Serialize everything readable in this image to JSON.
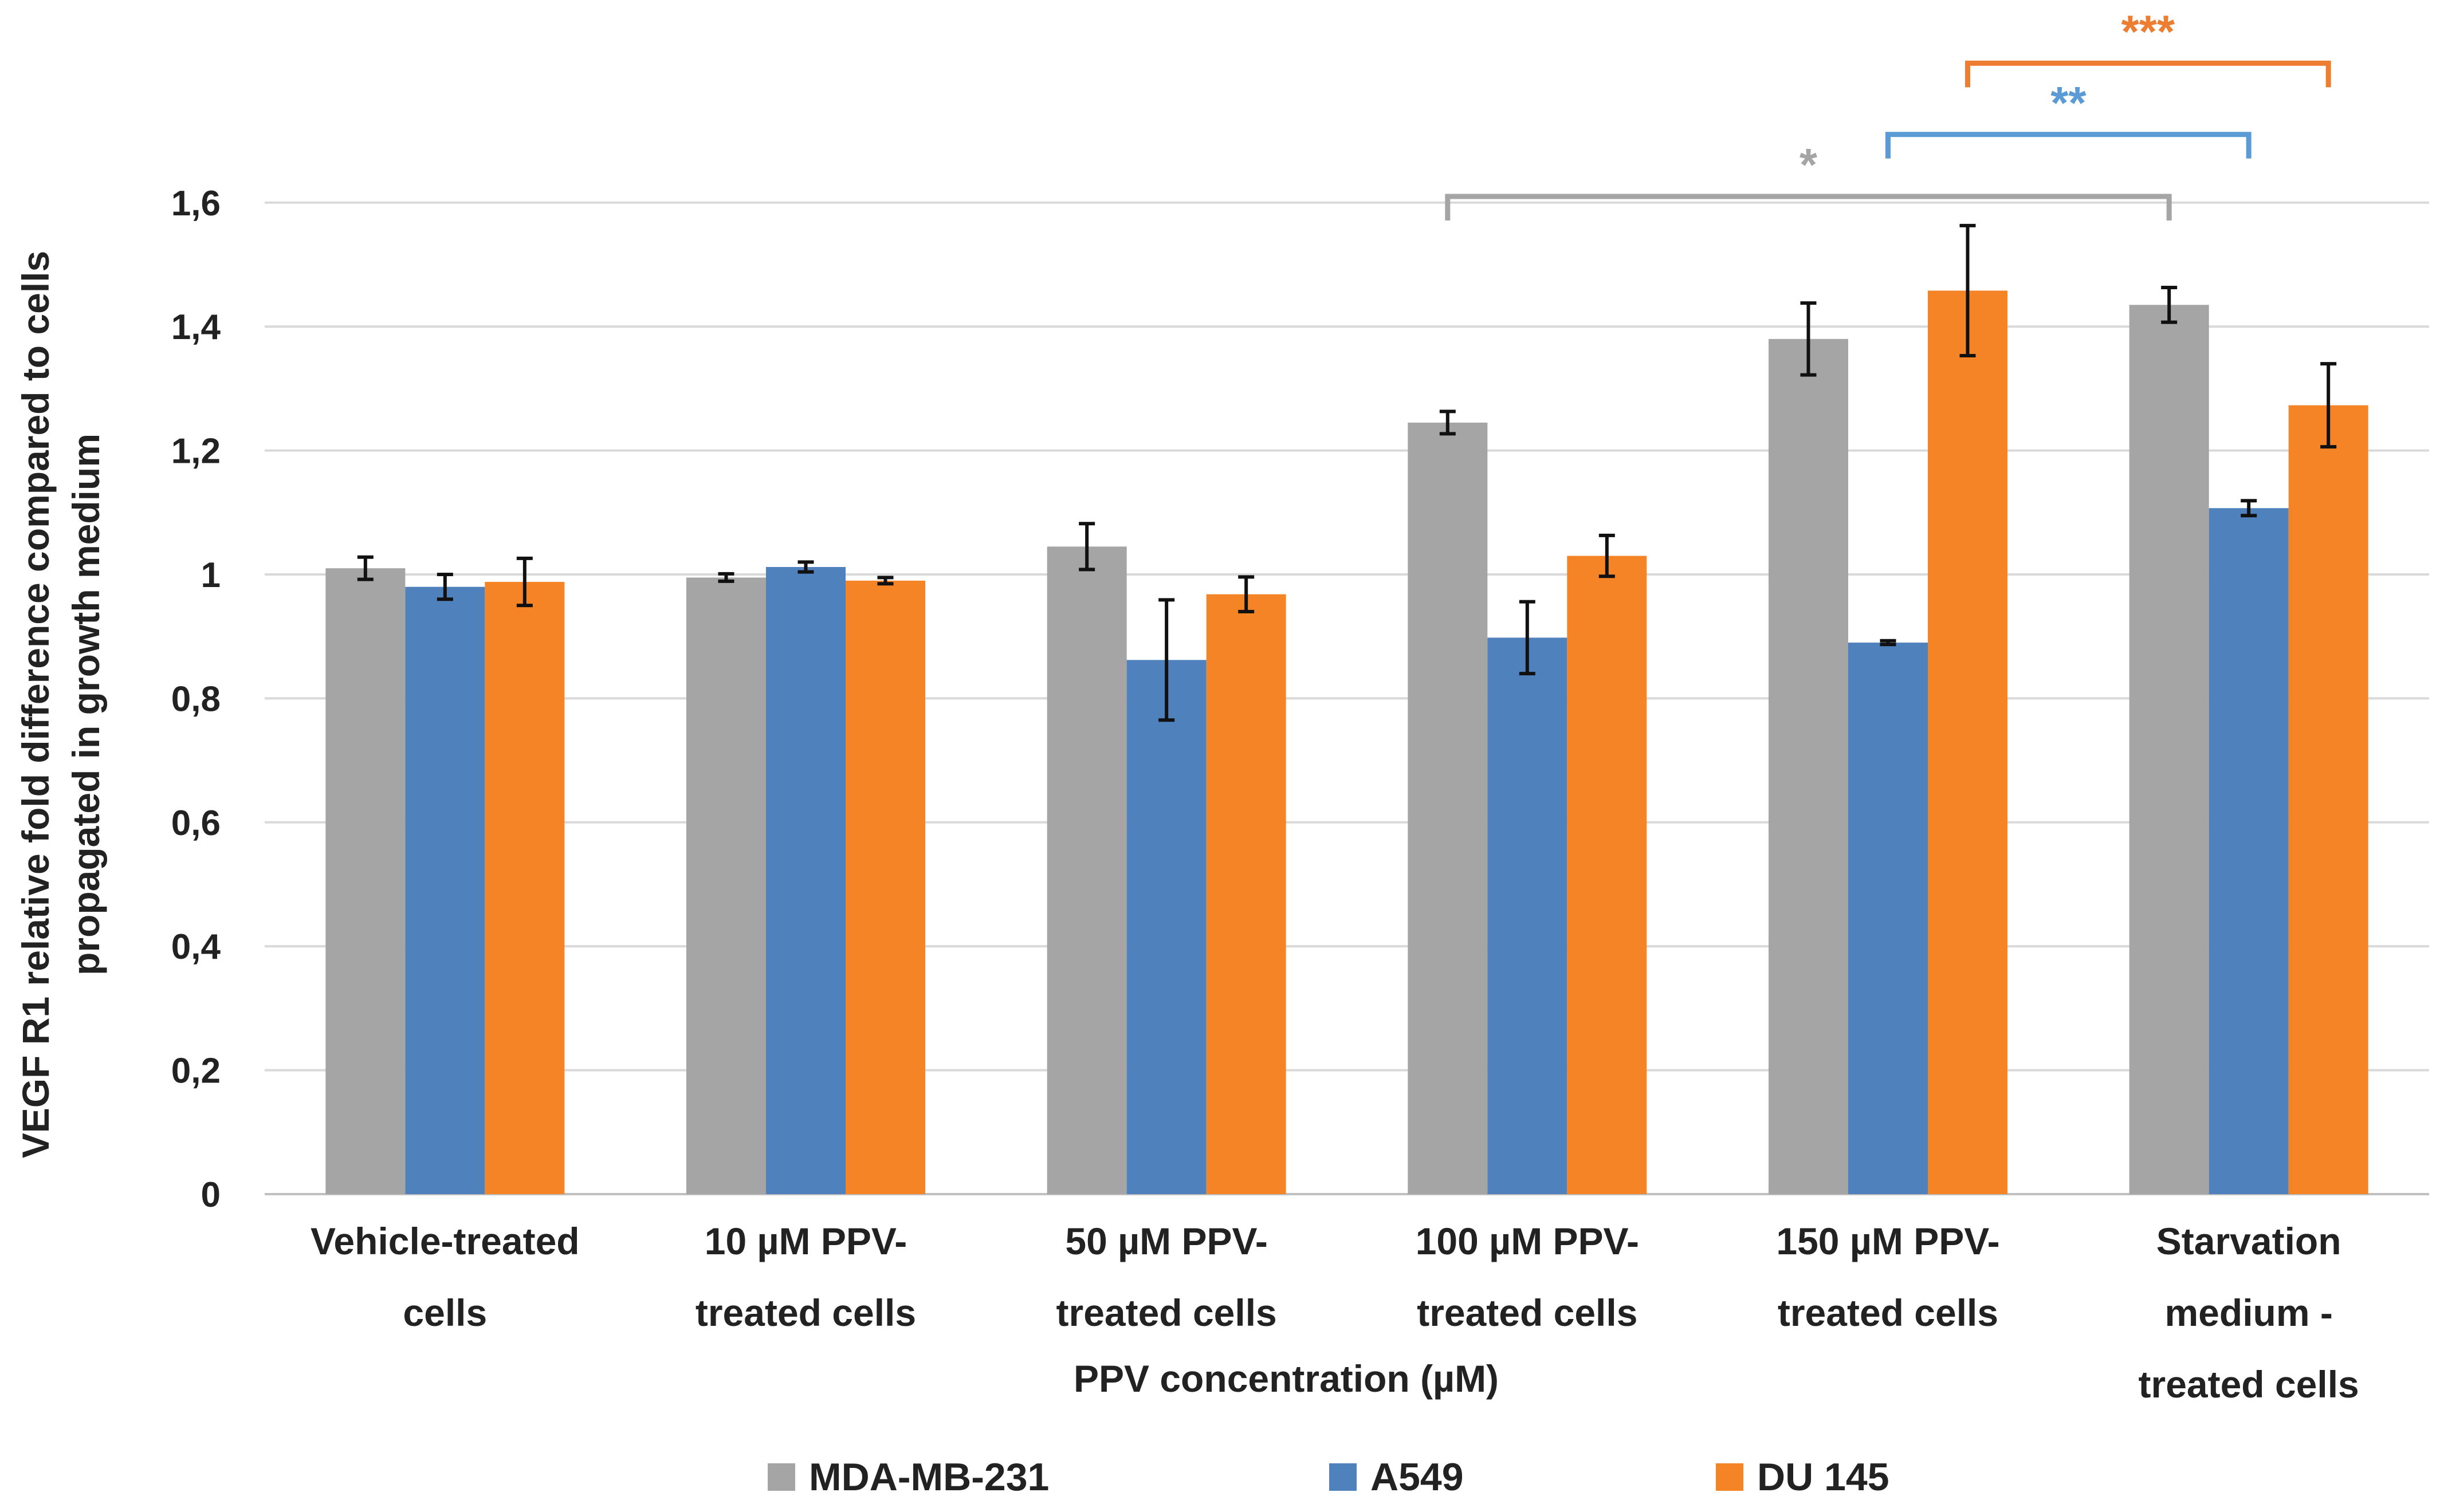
{
  "chart_data": {
    "type": "bar",
    "xlabel": "PPV concentration (µM)",
    "ylabel_lines": [
      "VEGF R1 relative fold difference compared to cells",
      "propagated in growth medium"
    ],
    "ylim": [
      0,
      1.6
    ],
    "yticks": [
      {
        "value": 0,
        "label": "0"
      },
      {
        "value": 0.2,
        "label": "0,2"
      },
      {
        "value": 0.4,
        "label": "0,4"
      },
      {
        "value": 0.6,
        "label": "0,6"
      },
      {
        "value": 0.8,
        "label": "0,8"
      },
      {
        "value": 1.0,
        "label": "1"
      },
      {
        "value": 1.2,
        "label": "1,2"
      },
      {
        "value": 1.4,
        "label": "1,4"
      },
      {
        "value": 1.6,
        "label": "1,6"
      }
    ],
    "grid": true,
    "legend_position": "bottom",
    "categories": [
      [
        "Vehicle-treated",
        "cells"
      ],
      [
        "10 µM PPV-",
        "treated cells"
      ],
      [
        "50 µM PPV-",
        "treated cells"
      ],
      [
        "100 µM PPV-",
        "treated cells"
      ],
      [
        "150 µM PPV-",
        "treated cells"
      ],
      [
        "Starvation",
        "medium -",
        "treated cells"
      ]
    ],
    "series": [
      {
        "name": "MDA-MB-231",
        "color": "#a5a5a5",
        "values": [
          1.01,
          0.995,
          1.045,
          1.245,
          1.38,
          1.435
        ],
        "errors": [
          0.018,
          0.006,
          0.037,
          0.018,
          0.058,
          0.028
        ]
      },
      {
        "name": "A549",
        "color": "#4f81bd",
        "values": [
          0.98,
          1.012,
          0.862,
          0.898,
          0.89,
          1.107
        ],
        "errors": [
          0.02,
          0.008,
          0.097,
          0.058,
          0.003,
          0.012
        ]
      },
      {
        "name": "DU 145",
        "color": "#f58426",
        "values": [
          0.988,
          0.99,
          0.968,
          1.03,
          1.458,
          1.273
        ],
        "errors": [
          0.038,
          0.005,
          0.028,
          0.033,
          0.105,
          0.067
        ]
      }
    ],
    "significance": [
      {
        "label": "*",
        "color": "#a5a5a5",
        "from_category": 3,
        "to_category": 5,
        "series": 0,
        "level": 1.61
      },
      {
        "label": "**",
        "color": "#5b9bd5",
        "from_category": 4,
        "to_category": 5,
        "series": 1,
        "level": 1.71
      },
      {
        "label": "***",
        "color": "#ed7d31",
        "from_category": 4,
        "to_category": 5,
        "series": 2,
        "level": 1.825
      }
    ]
  }
}
